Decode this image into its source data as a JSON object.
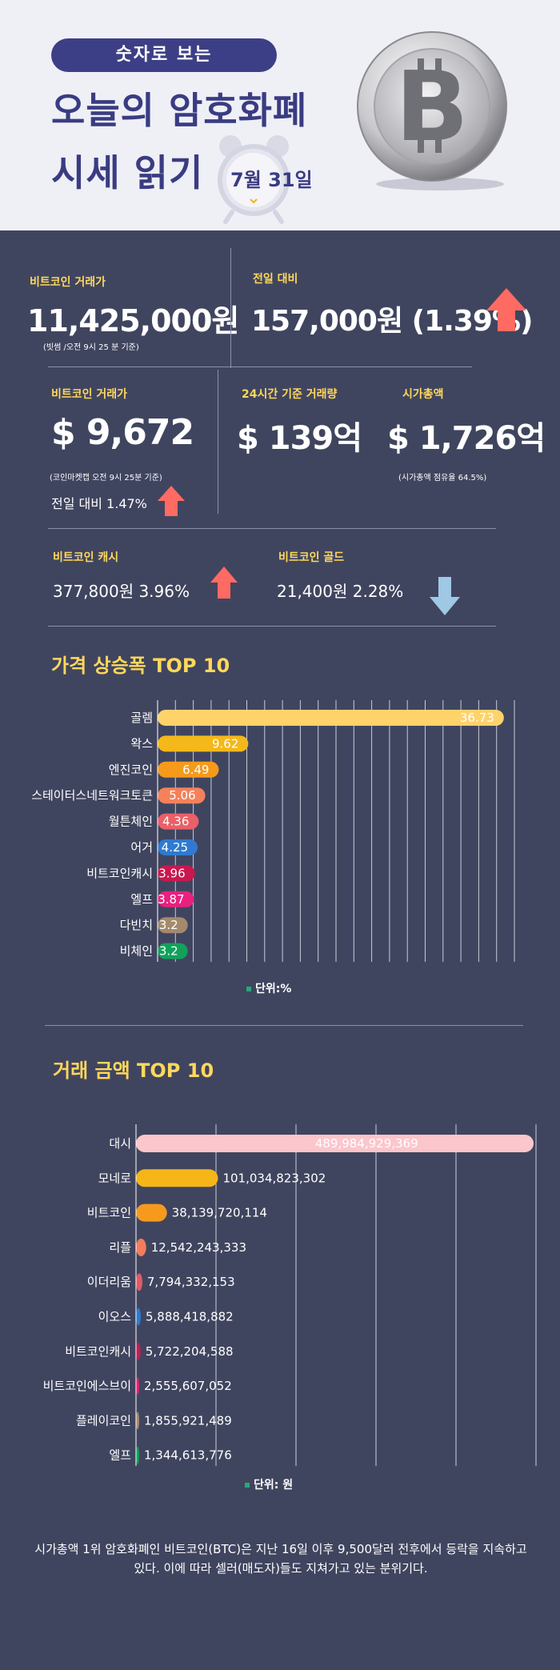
{
  "header": {
    "pill": "숫자로 보는",
    "title_line1": "오늘의 암호화폐",
    "title_line2": "시세 읽기",
    "date": "7월 31일"
  },
  "colors": {
    "bg": "#40455f",
    "accent_yellow": "#ffd85c",
    "up": "#ff6b62",
    "down": "#9fc8e4"
  },
  "btc_krw": {
    "label": "비트코인 거래가",
    "value": "11,425,000원",
    "note": "(빗썸 /오전 9시 25 분 기준)"
  },
  "prev_day": {
    "label": "전일 대비",
    "value": "157,000원 (1.39%)",
    "direction": "up"
  },
  "btc_usd": {
    "label": "비트코인 거래가",
    "value": "$ 9,672",
    "note": "(코인마켓캡 오전 9시 25분 기준)",
    "change": "전일 대비 1.47%",
    "direction": "up"
  },
  "volume24": {
    "label": "24시간 기준 거래량",
    "value": "$ 139억"
  },
  "market_cap": {
    "label": "시가총액",
    "value": "$ 1,726억",
    "note": "(시가총액 점유율 64.5%)"
  },
  "bch": {
    "label": "비트코인 캐시",
    "value": "377,800원  3.96%",
    "direction": "up"
  },
  "btg": {
    "label": "비트코인 골드",
    "value": "21,400원  2.28%",
    "direction": "down"
  },
  "chart_data": [
    {
      "type": "bar",
      "orientation": "horizontal",
      "title": "가격 상승폭 TOP 10",
      "unit": "단위:%",
      "categories": [
        "골렘",
        "왁스",
        "엔진코인",
        "스테이터스네트워크토큰",
        "월튼체인",
        "어거",
        "비트코인캐시",
        "엘프",
        "다빈치",
        "비체인"
      ],
      "values": [
        36.73,
        9.62,
        6.49,
        5.06,
        4.36,
        4.25,
        3.96,
        3.87,
        3.2,
        3.2
      ],
      "labels": [
        "36.73",
        "9.62",
        "6.49",
        "5.06",
        "4.36",
        "4.25",
        "3.96",
        "3.87",
        "3.2",
        "3.2"
      ],
      "colors": [
        "#ffd36a",
        "#f5b81a",
        "#f59a1b",
        "#f4815a",
        "#ea5f68",
        "#2f7ad0",
        "#c8184f",
        "#e8217e",
        "#a48a6c",
        "#12a15c"
      ],
      "grid": true,
      "xlim": [
        0,
        37
      ]
    },
    {
      "type": "bar",
      "orientation": "horizontal",
      "title": "거래 금액 TOP 10",
      "unit": "단위: 원",
      "categories": [
        "대시",
        "모네로",
        "비트코인",
        "리플",
        "이더리움",
        "이오스",
        "비트코인캐시",
        "비트코인에스브이",
        "플레이코인",
        "엘프"
      ],
      "values": [
        489984929369,
        101034823302,
        38139720114,
        12542243333,
        7794332153,
        5888418882,
        5722204588,
        2555607052,
        1855921489,
        1344613776
      ],
      "labels": [
        "489,984,929,369",
        "101,034,823,302",
        "38,139,720,114",
        "12,542,243,333",
        "7,794,332,153",
        "5,888,418,882",
        "5,722,204,588",
        "2,555,607,052",
        "1,855,921,489",
        "1,344,613,776"
      ],
      "colors": [
        "#fbc6cc",
        "#f6b617",
        "#f69a1d",
        "#f47c5c",
        "#e25a66",
        "#2e7acd",
        "#c21c56",
        "#e31f77",
        "#a48a6c",
        "#12a15c"
      ],
      "grid": true,
      "xlim": [
        0,
        700000000000
      ]
    }
  ],
  "footer": "시가총액 1위 암호화폐인 비트코인(BTC)은 지난 16일 이후 9,500달러 전후에서 등락을 지속하고 있다. 이에 따라 셀러(매도자)들도 지쳐가고 있는 분위기다."
}
